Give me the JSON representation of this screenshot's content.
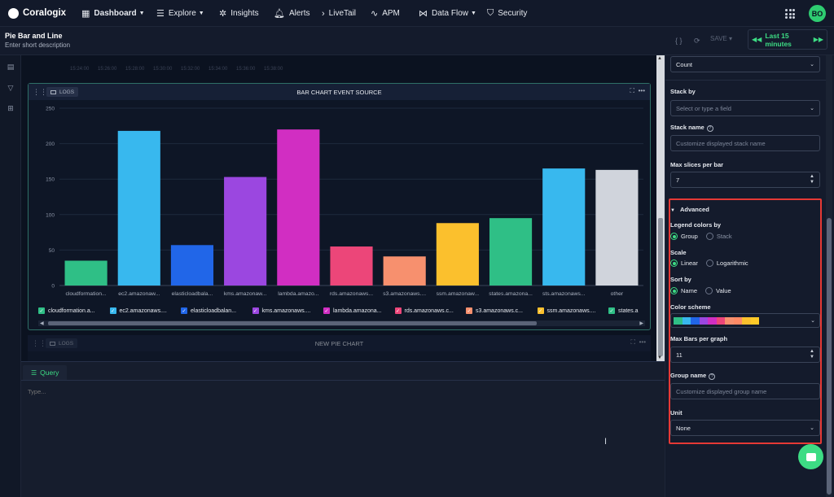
{
  "nav": {
    "brand": "Coralogix",
    "items": [
      {
        "label": "Dashboard",
        "icon": "dashboard-icon",
        "caret": true
      },
      {
        "label": "Explore",
        "icon": "explore-icon",
        "caret": true
      },
      {
        "label": "Insights",
        "icon": "insights-icon",
        "caret": false
      },
      {
        "label": "Alerts",
        "icon": "bell-icon",
        "caret": false
      },
      {
        "label": "LiveTail",
        "icon": "livetail-icon",
        "caret": false
      },
      {
        "label": "APM",
        "icon": "apm-icon",
        "caret": false
      },
      {
        "label": "Data Flow",
        "icon": "dataflow-icon",
        "caret": true
      },
      {
        "label": "Security",
        "icon": "shield-icon",
        "caret": false
      }
    ],
    "avatar": "BO"
  },
  "header": {
    "title": "Pie Bar and Line",
    "description": "Enter short description",
    "save_label": "SAVE",
    "time_range": "Last 15 minutes"
  },
  "timeline": [
    "15:24:00",
    "15:26:00",
    "15:28:00",
    "15:30:00",
    "15:32:00",
    "15:34:00",
    "15:36:00",
    "15:38:00"
  ],
  "widget": {
    "badge": "LOGS",
    "title": "BAR CHART EVENT SOURCE"
  },
  "chart_data": {
    "type": "bar",
    "categories": [
      "cloudformation...",
      "ec2.amazonaw...",
      "elasticloadbala...",
      "kms.amazonaw...",
      "lambda.amazo...",
      "rds.amazonaws...",
      "s3.amazonaws....",
      "ssm.amazonaw...",
      "states.amazona...",
      "sts.amazonaws...",
      "other"
    ],
    "values": [
      35,
      218,
      57,
      153,
      220,
      55,
      41,
      88,
      95,
      165,
      163
    ],
    "colors": [
      "#2fbf86",
      "#38b8ee",
      "#2166e8",
      "#9b47e0",
      "#d12ec2",
      "#ec4679",
      "#f7906e",
      "#fbc02d",
      "#2fbf86",
      "#38b8ee",
      "#d0d4dc"
    ],
    "yticks": [
      0,
      50,
      100,
      150,
      200,
      250
    ],
    "ylim": [
      0,
      250
    ],
    "grid": true
  },
  "legend": [
    {
      "label": "cloudformation.a...",
      "color": "#2fbf86"
    },
    {
      "label": "ec2.amazonaws....",
      "color": "#38b8ee"
    },
    {
      "label": "elasticloadbalan...",
      "color": "#2166e8"
    },
    {
      "label": "kms.amazonaws....",
      "color": "#9b47e0"
    },
    {
      "label": "lambda.amazona...",
      "color": "#d12ec2"
    },
    {
      "label": "rds.amazonaws.c...",
      "color": "#ec4679"
    },
    {
      "label": "s3.amazonaws.c...",
      "color": "#f7906e"
    },
    {
      "label": "ssm.amazonaws....",
      "color": "#fbc02d"
    },
    {
      "label": "states.a",
      "color": "#2fbf86"
    }
  ],
  "widget2": {
    "badge": "LOGS",
    "title": "NEW PIE CHART"
  },
  "query": {
    "tab_label": "Query",
    "placeholder": "Type..."
  },
  "panel": {
    "count_value": "Count",
    "stack_by_label": "Stack by",
    "stack_by_placeholder": "Select or type a field",
    "stack_name_label": "Stack name",
    "stack_name_placeholder": "Customize displayed stack name",
    "max_slices_label": "Max slices per bar",
    "max_slices_value": "7",
    "advanced_label": "Advanced",
    "legend_colors_label": "Legend colors by",
    "legend_colors_options": [
      "Group",
      "Stack"
    ],
    "scale_label": "Scale",
    "scale_options": [
      "Linear",
      "Logarithmic"
    ],
    "sort_label": "Sort by",
    "sort_options": [
      "Name",
      "Value"
    ],
    "color_scheme_label": "Color scheme",
    "color_scheme_colors": [
      "#2fbf86",
      "#38b8ee",
      "#2166e8",
      "#9b47e0",
      "#d12ec2",
      "#ec4679",
      "#f7906e",
      "#ff8a65",
      "#fbc02d",
      "#ffca28"
    ],
    "max_bars_label": "Max Bars per graph",
    "max_bars_value": "11",
    "group_name_label": "Group name",
    "group_name_placeholder": "Customize displayed group name",
    "unit_label": "Unit",
    "unit_value": "None"
  }
}
